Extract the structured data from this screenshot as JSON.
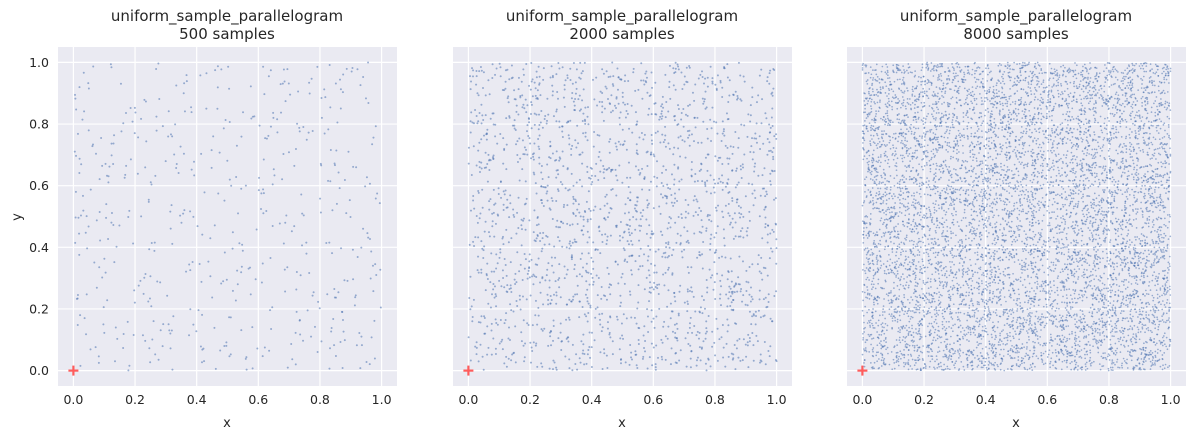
{
  "figure": {
    "background_color": "#ffffff",
    "axes_face_color": "#eaeaf2",
    "grid_color": "#ffffff",
    "point_color": "#4c72b0",
    "origin_marker_color": "#ff5c5c"
  },
  "chart_data": [
    {
      "type": "scatter",
      "title": "uniform_sample_parallelogram",
      "subtitle": "500 samples",
      "xlabel": "x",
      "ylabel": "y",
      "n_samples": 500,
      "sample_distribution": "uniform",
      "xlim": [
        -0.05,
        1.05
      ],
      "ylim": [
        -0.05,
        1.05
      ],
      "xticks": [
        "0.0",
        "0.2",
        "0.4",
        "0.6",
        "0.8",
        "1.0"
      ],
      "yticks": [
        "0.0",
        "0.2",
        "0.4",
        "0.6",
        "0.8",
        "1.0"
      ],
      "show_yticklabels": true,
      "grid": true,
      "origin_marker": {
        "x": 0,
        "y": 0,
        "shape": "plus"
      }
    },
    {
      "type": "scatter",
      "title": "uniform_sample_parallelogram",
      "subtitle": "2000 samples",
      "xlabel": "x",
      "ylabel": "",
      "n_samples": 2000,
      "sample_distribution": "uniform",
      "xlim": [
        -0.05,
        1.05
      ],
      "ylim": [
        -0.05,
        1.05
      ],
      "xticks": [
        "0.0",
        "0.2",
        "0.4",
        "0.6",
        "0.8",
        "1.0"
      ],
      "yticks": [
        "0.0",
        "0.2",
        "0.4",
        "0.6",
        "0.8",
        "1.0"
      ],
      "show_yticklabels": false,
      "grid": true,
      "origin_marker": {
        "x": 0,
        "y": 0,
        "shape": "plus"
      }
    },
    {
      "type": "scatter",
      "title": "uniform_sample_parallelogram",
      "subtitle": "8000 samples",
      "xlabel": "x",
      "ylabel": "",
      "n_samples": 8000,
      "sample_distribution": "uniform",
      "xlim": [
        -0.05,
        1.05
      ],
      "ylim": [
        -0.05,
        1.05
      ],
      "xticks": [
        "0.0",
        "0.2",
        "0.4",
        "0.6",
        "0.8",
        "1.0"
      ],
      "yticks": [
        "0.0",
        "0.2",
        "0.4",
        "0.6",
        "0.8",
        "1.0"
      ],
      "show_yticklabels": false,
      "grid": true,
      "origin_marker": {
        "x": 0,
        "y": 0,
        "shape": "plus"
      }
    }
  ]
}
